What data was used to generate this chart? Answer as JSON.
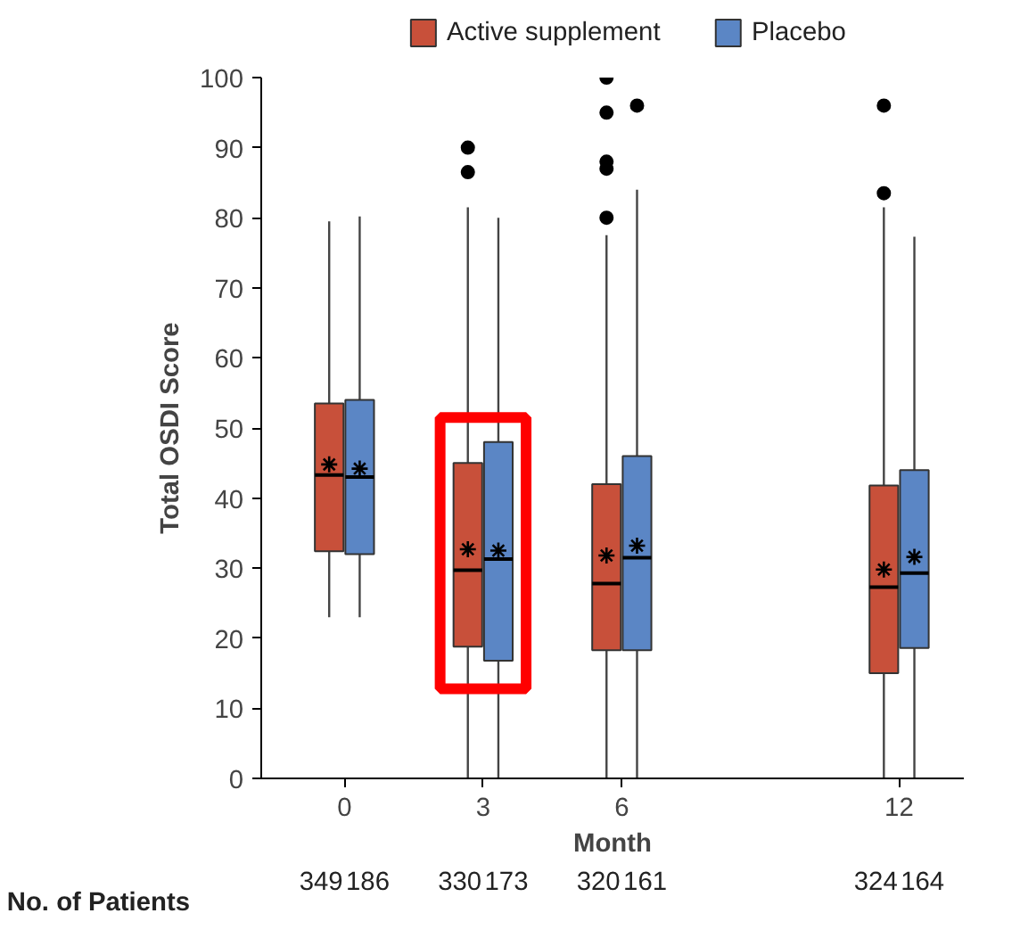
{
  "chart_data": {
    "type": "box",
    "xlabel": "Month",
    "ylabel": "Total OSDI Score",
    "xlim": [
      -1.8,
      13.4
    ],
    "xticks": [
      0,
      3,
      6,
      12
    ],
    "ylim": [
      0,
      100
    ],
    "yticks": [
      0,
      10,
      20,
      30,
      40,
      50,
      60,
      70,
      80,
      90,
      100
    ],
    "grid": false,
    "legend": "top",
    "marker": "circle",
    "annotations": [
      "No. of Patients",
      "349",
      "186",
      "330",
      "173",
      "320",
      "161",
      "324",
      "164"
    ],
    "series": [
      {
        "name": "Active supplement",
        "color": "#c8503a",
        "x": [
          0,
          3,
          6,
          12
        ],
        "boxes": [
          {
            "low": 23,
            "q1": 32.4,
            "median": 43.3,
            "q3": 53.5,
            "high": 79.5,
            "mean": 44.8
          },
          {
            "low": 0,
            "q1": 18.8,
            "median": 29.7,
            "q3": 45,
            "high": 81.5,
            "mean": 32.7,
            "outliers": [
              90,
              86.5
            ]
          },
          {
            "low": 0,
            "q1": 18.3,
            "median": 27.8,
            "q3": 42,
            "high": 77.5,
            "mean": 31.8,
            "outliers": [
              100,
              95,
              88,
              87,
              80
            ]
          },
          {
            "low": 0,
            "q1": 15,
            "median": 27.3,
            "q3": 41.8,
            "high": 81.5,
            "mean": 29.8,
            "outliers": [
              96,
              83.5
            ]
          }
        ]
      },
      {
        "name": "Placebo",
        "color": "#5b86c5",
        "x": [
          0,
          3,
          6,
          12
        ],
        "boxes": [
          {
            "low": 23,
            "q1": 32,
            "median": 43,
            "q3": 54,
            "high": 80.2,
            "mean": 44.2
          },
          {
            "low": 0,
            "q1": 16.8,
            "median": 31.3,
            "q3": 48,
            "high": 80,
            "mean": 32.5
          },
          {
            "low": 0,
            "q1": 18.3,
            "median": 31.5,
            "q3": 46,
            "high": 84,
            "mean": 33.2,
            "outliers": [
              96
            ]
          },
          {
            "low": 0,
            "q1": 18.6,
            "median": 29.3,
            "q3": 44,
            "high": 77.3,
            "mean": 31.6
          }
        ]
      }
    ]
  }
}
